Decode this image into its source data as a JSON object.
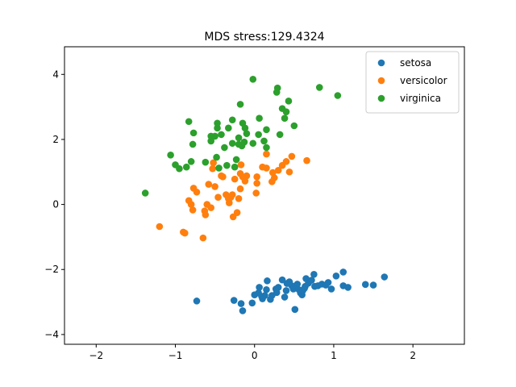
{
  "chart_data": {
    "type": "scatter",
    "title": "MDS stress:129.4324",
    "xlabel": "",
    "ylabel": "",
    "xlim": [
      -2.4,
      2.65
    ],
    "ylim": [
      -4.3,
      4.85
    ],
    "xticks": [
      -2,
      -1,
      0,
      1,
      2
    ],
    "yticks": [
      -4,
      -2,
      0,
      2,
      4
    ],
    "xtick_labels": [
      "−2",
      "−1",
      "0",
      "1",
      "2"
    ],
    "ytick_labels": [
      "−4",
      "−2",
      "0",
      "2",
      "4"
    ],
    "grid": false,
    "legend_position": "top-right",
    "series": [
      {
        "name": "setosa",
        "color": "#1f77b4",
        "points": [
          [
            -0.73,
            -2.97
          ],
          [
            -0.26,
            -2.95
          ],
          [
            -0.17,
            -3.05
          ],
          [
            -0.15,
            -3.27
          ],
          [
            -0.03,
            -3.03
          ],
          [
            0.0,
            -2.78
          ],
          [
            0.05,
            -2.72
          ],
          [
            0.06,
            -2.55
          ],
          [
            0.09,
            -2.83
          ],
          [
            0.13,
            -2.8
          ],
          [
            0.15,
            -2.62
          ],
          [
            0.16,
            -2.35
          ],
          [
            0.2,
            -2.92
          ],
          [
            0.22,
            -2.8
          ],
          [
            0.27,
            -2.6
          ],
          [
            0.3,
            -2.55
          ],
          [
            0.35,
            -2.32
          ],
          [
            0.38,
            -2.85
          ],
          [
            0.4,
            -2.65
          ],
          [
            0.41,
            -2.43
          ],
          [
            0.44,
            -2.38
          ],
          [
            0.47,
            -2.5
          ],
          [
            0.49,
            -2.6
          ],
          [
            0.51,
            -3.23
          ],
          [
            0.54,
            -2.45
          ],
          [
            0.56,
            -2.62
          ],
          [
            0.58,
            -2.72
          ],
          [
            0.6,
            -2.78
          ],
          [
            0.61,
            -2.65
          ],
          [
            0.63,
            -2.58
          ],
          [
            0.64,
            -2.52
          ],
          [
            0.65,
            -2.28
          ],
          [
            0.68,
            -2.42
          ],
          [
            0.72,
            -2.33
          ],
          [
            0.76,
            -2.52
          ],
          [
            0.75,
            -2.15
          ],
          [
            0.8,
            -2.5
          ],
          [
            0.85,
            -2.45
          ],
          [
            0.9,
            -2.48
          ],
          [
            0.93,
            -2.4
          ],
          [
            0.97,
            -2.6
          ],
          [
            1.03,
            -2.2
          ],
          [
            1.12,
            -2.08
          ],
          [
            1.12,
            -2.5
          ],
          [
            1.18,
            -2.55
          ],
          [
            1.4,
            -2.46
          ],
          [
            1.5,
            -2.48
          ],
          [
            1.64,
            -2.23
          ],
          [
            0.1,
            -2.9
          ],
          [
            0.28,
            -2.71
          ]
        ]
      },
      {
        "name": "versicolor",
        "color": "#ff7f0e",
        "points": [
          [
            -1.2,
            -0.68
          ],
          [
            -0.9,
            -0.85
          ],
          [
            -0.88,
            -0.88
          ],
          [
            -0.83,
            0.12
          ],
          [
            -0.8,
            0.0
          ],
          [
            -0.78,
            -0.17
          ],
          [
            -0.77,
            0.5
          ],
          [
            -0.73,
            0.38
          ],
          [
            -0.65,
            -1.03
          ],
          [
            -0.63,
            -0.2
          ],
          [
            -0.62,
            -0.32
          ],
          [
            -0.6,
            0.0
          ],
          [
            -0.58,
            0.62
          ],
          [
            -0.55,
            -0.1
          ],
          [
            -0.53,
            1.1
          ],
          [
            -0.52,
            1.28
          ],
          [
            -0.5,
            0.55
          ],
          [
            -0.46,
            0.22
          ],
          [
            -0.42,
            0.88
          ],
          [
            -0.4,
            0.85
          ],
          [
            -0.36,
            0.3
          ],
          [
            -0.33,
            0.18
          ],
          [
            -0.32,
            0.05
          ],
          [
            -0.3,
            0.22
          ],
          [
            -0.28,
            0.3
          ],
          [
            -0.27,
            -0.38
          ],
          [
            -0.25,
            0.78
          ],
          [
            -0.22,
            -0.25
          ],
          [
            -0.2,
            0.18
          ],
          [
            -0.18,
            0.48
          ],
          [
            -0.18,
            0.95
          ],
          [
            -0.17,
            1.22
          ],
          [
            -0.15,
            0.85
          ],
          [
            -0.12,
            0.72
          ],
          [
            -0.1,
            0.88
          ],
          [
            0.02,
            0.35
          ],
          [
            0.03,
            0.65
          ],
          [
            0.03,
            0.85
          ],
          [
            0.1,
            1.15
          ],
          [
            0.15,
            1.12
          ],
          [
            0.15,
            1.55
          ],
          [
            0.22,
            0.7
          ],
          [
            0.23,
            0.98
          ],
          [
            0.25,
            0.82
          ],
          [
            0.35,
            1.2
          ],
          [
            0.4,
            1.32
          ],
          [
            0.44,
            1.0
          ],
          [
            0.47,
            1.48
          ],
          [
            0.66,
            1.35
          ],
          [
            0.3,
            1.05
          ]
        ]
      },
      {
        "name": "virginica",
        "color": "#2ca02c",
        "points": [
          [
            -1.38,
            0.35
          ],
          [
            -1.06,
            1.52
          ],
          [
            -1.0,
            1.22
          ],
          [
            -0.95,
            1.1
          ],
          [
            -0.86,
            1.15
          ],
          [
            -0.83,
            2.55
          ],
          [
            -0.8,
            1.32
          ],
          [
            -0.78,
            1.85
          ],
          [
            -0.77,
            2.2
          ],
          [
            -0.62,
            1.3
          ],
          [
            -0.55,
            1.95
          ],
          [
            -0.55,
            2.1
          ],
          [
            -0.5,
            2.1
          ],
          [
            -0.48,
            1.45
          ],
          [
            -0.47,
            2.35
          ],
          [
            -0.47,
            2.5
          ],
          [
            -0.45,
            1.12
          ],
          [
            -0.42,
            2.15
          ],
          [
            -0.38,
            1.75
          ],
          [
            -0.35,
            1.2
          ],
          [
            -0.33,
            2.35
          ],
          [
            -0.28,
            1.88
          ],
          [
            -0.28,
            2.6
          ],
          [
            -0.25,
            1.15
          ],
          [
            -0.23,
            1.38
          ],
          [
            -0.2,
            1.85
          ],
          [
            -0.2,
            2.05
          ],
          [
            -0.18,
            3.08
          ],
          [
            -0.16,
            1.8
          ],
          [
            -0.15,
            2.5
          ],
          [
            -0.13,
            1.92
          ],
          [
            -0.12,
            2.35
          ],
          [
            -0.1,
            2.18
          ],
          [
            -0.02,
            3.85
          ],
          [
            -0.02,
            1.88
          ],
          [
            0.05,
            2.15
          ],
          [
            0.06,
            2.65
          ],
          [
            0.12,
            1.95
          ],
          [
            0.15,
            1.75
          ],
          [
            0.15,
            2.3
          ],
          [
            0.28,
            3.45
          ],
          [
            0.29,
            3.58
          ],
          [
            0.32,
            2.15
          ],
          [
            0.35,
            2.95
          ],
          [
            0.38,
            2.65
          ],
          [
            0.4,
            2.85
          ],
          [
            0.43,
            3.18
          ],
          [
            0.5,
            2.42
          ],
          [
            0.82,
            3.6
          ],
          [
            1.05,
            3.35
          ]
        ]
      }
    ]
  }
}
